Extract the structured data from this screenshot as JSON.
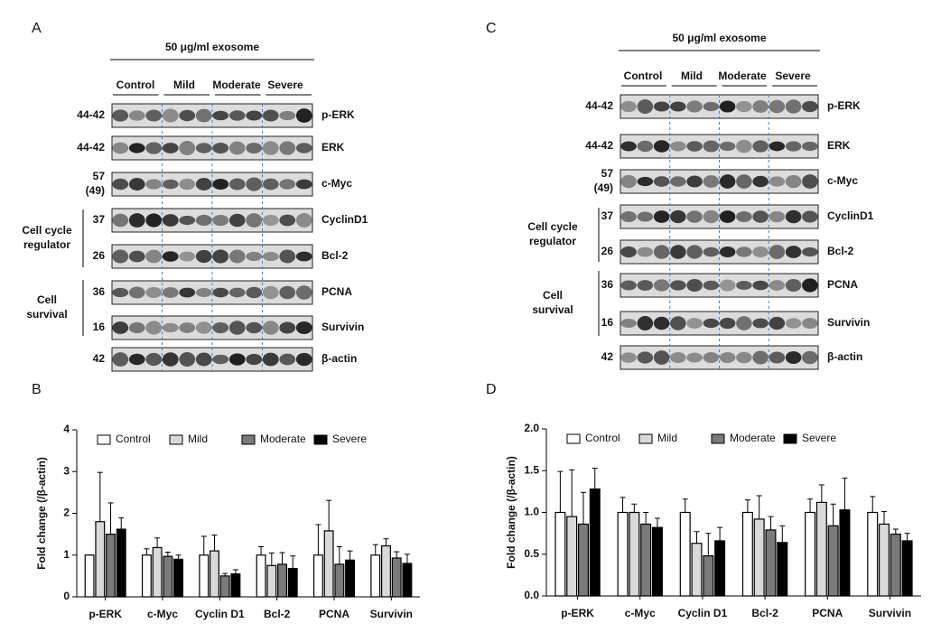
{
  "blots": [
    {
      "label": "A",
      "treatment": "50 μg/ml exosome",
      "groups": [
        "Control",
        "Mild",
        "Moderate",
        "Severe"
      ],
      "rows": [
        {
          "mw": [
            "44-42"
          ],
          "name": "p-ERK"
        },
        {
          "mw": [
            "44-42"
          ],
          "name": "ERK"
        },
        {
          "mw": [
            "57",
            "(49)"
          ],
          "name": "c-Myc"
        },
        {
          "mw": [
            "37"
          ],
          "name": "CyclinD1"
        },
        {
          "mw": [
            "26"
          ],
          "name": "Bcl-2"
        },
        {
          "mw": [
            "36"
          ],
          "name": "PCNA"
        },
        {
          "mw": [
            "16"
          ],
          "name": "Survivin"
        },
        {
          "mw": [
            "42"
          ],
          "name": "β-actin"
        }
      ],
      "side_groups": [
        {
          "lines": [
            "Cell cycle",
            "regulator"
          ]
        },
        {
          "lines": [
            "Cell",
            "survival"
          ]
        }
      ]
    },
    {
      "label": "C",
      "treatment": "50 μg/ml exosome",
      "groups": [
        "Control",
        "Mild",
        "Moderate",
        "Severe"
      ],
      "rows": [
        {
          "mw": [
            "44-42"
          ],
          "name": "p-ERK"
        },
        {
          "mw": [
            "44-42"
          ],
          "name": "ERK"
        },
        {
          "mw": [
            "57",
            "(49)"
          ],
          "name": "c-Myc"
        },
        {
          "mw": [
            "37"
          ],
          "name": "CyclinD1"
        },
        {
          "mw": [
            "26"
          ],
          "name": "Bcl-2"
        },
        {
          "mw": [
            "36"
          ],
          "name": "PCNA"
        },
        {
          "mw": [
            "16"
          ],
          "name": "Survivin"
        },
        {
          "mw": [
            "42"
          ],
          "name": "β-actin"
        }
      ],
      "side_groups": [
        {
          "lines": [
            "Cell cycle",
            "regulator"
          ]
        },
        {
          "lines": [
            "Cell",
            "survival"
          ]
        }
      ]
    }
  ],
  "chart_data": [
    {
      "type": "bar",
      "panel": "B",
      "ylabel": "Fold change (/β-actin)",
      "categories": [
        "p-ERK",
        "c-Myc",
        "Cyclin D1",
        "Bcl-2",
        "PCNA",
        "Survivin"
      ],
      "ylim": [
        0,
        4
      ],
      "yticks": [
        0,
        1,
        2,
        3,
        4
      ],
      "series": [
        {
          "name": "Control",
          "color": "#ffffff",
          "values": [
            1,
            1,
            1,
            1,
            1,
            1
          ],
          "errors": [
            0,
            0.15,
            0.45,
            0.2,
            0.73,
            0.25
          ]
        },
        {
          "name": "Mild",
          "color": "#d9d9d9",
          "values": [
            1.8,
            1.18,
            1.1,
            0.75,
            1.58,
            1.22
          ],
          "errors": [
            1.18,
            0.23,
            0.38,
            0.3,
            0.73,
            0.17
          ]
        },
        {
          "name": "Moderate",
          "color": "#7a7a7a",
          "values": [
            1.5,
            0.97,
            0.5,
            0.78,
            0.78,
            0.93
          ],
          "errors": [
            0.75,
            0.1,
            0.06,
            0.28,
            0.42,
            0.15
          ]
        },
        {
          "name": "Severe",
          "color": "#000000",
          "values": [
            1.62,
            0.9,
            0.55,
            0.68,
            0.88,
            0.8
          ],
          "errors": [
            0.27,
            0.1,
            0.1,
            0.3,
            0.22,
            0.22
          ]
        }
      ]
    },
    {
      "type": "bar",
      "panel": "D",
      "ylabel": "Fold change (/β-actin)",
      "categories": [
        "p-ERK",
        "c-Myc",
        "Cyclin D1",
        "Bcl-2",
        "PCNA",
        "Survivin"
      ],
      "ylim": [
        0,
        2
      ],
      "yticks": [
        {
          "value": 0,
          "label": "0.0"
        },
        0.5,
        {
          "value": 1,
          "label": "1.0"
        },
        1.5,
        {
          "value": 2,
          "label": "2.0"
        }
      ],
      "series": [
        {
          "name": "Control",
          "color": "#ffffff",
          "values": [
            1,
            1,
            1,
            1,
            1,
            1
          ],
          "errors": [
            0.49,
            0.18,
            0.16,
            0.15,
            0.16,
            0.19
          ]
        },
        {
          "name": "Mild",
          "color": "#d9d9d9",
          "values": [
            0.95,
            1,
            0.63,
            0.92,
            1.12,
            0.86
          ],
          "errors": [
            0.56,
            0.1,
            0.14,
            0.28,
            0.21,
            0.15
          ]
        },
        {
          "name": "Moderate",
          "color": "#7a7a7a",
          "values": [
            0.86,
            0.86,
            0.48,
            0.79,
            0.84,
            0.74
          ],
          "errors": [
            0.38,
            0.14,
            0.27,
            0.16,
            0.26,
            0.06
          ]
        },
        {
          "name": "Severe",
          "color": "#000000",
          "values": [
            1.28,
            0.82,
            0.66,
            0.64,
            1.03,
            0.66
          ],
          "errors": [
            0.25,
            0.11,
            0.16,
            0.2,
            0.38,
            0.09
          ]
        }
      ]
    }
  ]
}
